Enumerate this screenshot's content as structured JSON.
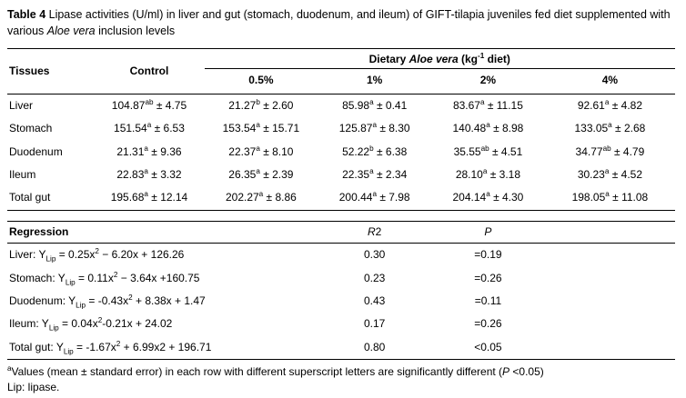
{
  "title": {
    "bold": "Table 4",
    "main": " Lipase activities (U/ml) in liver and gut (stomach, duodenum, and ileum) of GIFT-tilapia juveniles fed diet supplemented with various ",
    "italic": "Aloe vera",
    "end": " inclusion levels"
  },
  "table": {
    "col_tissues": "Tissues",
    "col_control": "Control",
    "group": {
      "pre": "Dietary ",
      "italic": "Aloe vera",
      "mid": " (kg",
      "sup": "-1",
      "post": " diet)"
    },
    "levels": [
      "0.5%",
      "1%",
      "2%",
      "4%"
    ],
    "rows": [
      {
        "tissue": "Liver",
        "c": [
          {
            "b": "104.87",
            "s": "ab",
            "r": "± 4.75"
          },
          {
            "b": "21.27",
            "s": "b",
            "r": "± 2.60"
          },
          {
            "b": "85.98",
            "s": "a",
            "r": "± 0.41"
          },
          {
            "b": "83.67",
            "s": "a",
            "r": "± 11.15"
          },
          {
            "b": "92.61",
            "s": "a",
            "r": "± 4.82"
          }
        ]
      },
      {
        "tissue": "Stomach",
        "c": [
          {
            "b": "151.54",
            "s": "a",
            "r": "± 6.53"
          },
          {
            "b": "153.54",
            "s": "a",
            "r": "± 15.71"
          },
          {
            "b": "125.87",
            "s": "a",
            "r": "± 8.30"
          },
          {
            "b": "140.48",
            "s": "a",
            "r": "± 8.98"
          },
          {
            "b": "133.05",
            "s": "a",
            "r": "± 2.68"
          }
        ]
      },
      {
        "tissue": "Duodenum",
        "c": [
          {
            "b": "21.31",
            "s": "a",
            "r": "± 9.36"
          },
          {
            "b": "22.37",
            "s": "a",
            "r": "± 8.10"
          },
          {
            "b": "52.22",
            "s": "b",
            "r": "± 6.38"
          },
          {
            "b": "35.55",
            "s": "ab",
            "r": "± 4.51"
          },
          {
            "b": "34.77",
            "s": "ab",
            "r": "± 4.79"
          }
        ]
      },
      {
        "tissue": "Ileum",
        "c": [
          {
            "b": "22.83",
            "s": "a",
            "r": "± 3.32"
          },
          {
            "b": "26.35",
            "s": "a",
            "r": "± 2.39"
          },
          {
            "b": "22.35",
            "s": "a",
            "r": "± 2.34"
          },
          {
            "b": "28.10",
            "s": "a",
            "r": "± 3.18"
          },
          {
            "b": "30.23",
            "s": "a",
            "r": "± 4.52"
          }
        ]
      },
      {
        "tissue": "Total gut",
        "c": [
          {
            "b": "195.68",
            "s": "a",
            "r": "± 12.14"
          },
          {
            "b": "202.27",
            "s": "a",
            "r": "± 8.86"
          },
          {
            "b": "200.44",
            "s": "a",
            "r": "± 7.98"
          },
          {
            "b": "204.14",
            "s": "a",
            "r": "± 4.30"
          },
          {
            "b": "198.05",
            "s": "a",
            "r": "± 11.08"
          }
        ]
      }
    ]
  },
  "regression": {
    "label": "Regression",
    "r2_italic": "R",
    "r2_rest": "2",
    "p_header": "P",
    "rows": [
      {
        "name": "Liver: Y",
        "sub": "Lip",
        "eq1": " = 0.25x",
        "sup": "2",
        "eq2": " − 6.20x + 126.26",
        "r2": "0.30",
        "p": "=0.19"
      },
      {
        "name": "Stomach: Y",
        "sub": "Lip",
        "eq1": " = 0.11x",
        "sup": "2",
        "eq2": " − 3.64x +160.75",
        "r2": "0.23",
        "p": "=0.26"
      },
      {
        "name": "Duodenum: Y",
        "sub": "Lip",
        "eq1": " = -0.43x",
        "sup": "2",
        "eq2": " + 8.38x + 1.47",
        "r2": "0.43",
        "p": "=0.11"
      },
      {
        "name": "Ileum: Y",
        "sub": "Lip",
        "eq1": " = 0.04x",
        "sup": "2",
        "eq2": "-0.21x + 24.02",
        "r2": "0.17",
        "p": "=0.26"
      },
      {
        "name": "Total gut: Y",
        "sub": "Lip",
        "eq1": " = -1.67x",
        "sup": "2",
        "eq2": " + 6.99x2 + 196.71",
        "r2": "0.80",
        "p": "<0.05"
      }
    ]
  },
  "footnotes": {
    "sup": "a",
    "line1_pre": "Values (mean ± standard error) in each row with different superscript letters are significantly different (",
    "line1_italic": "P",
    "line1_end": " <0.05)",
    "line2": "Lip: lipase."
  }
}
